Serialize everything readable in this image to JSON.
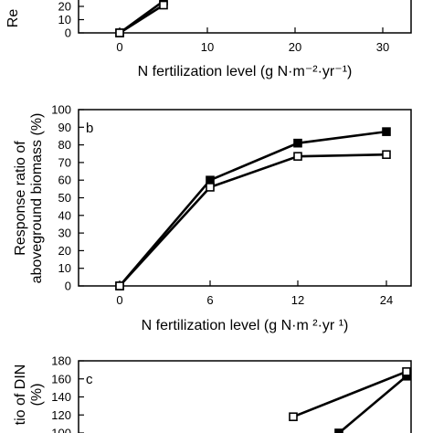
{
  "chart_data": [
    {
      "type": "line",
      "panel": "a",
      "x": [
        0,
        5
      ],
      "series": [
        {
          "marker": "filled-square",
          "values": [
            0,
            24
          ]
        },
        {
          "marker": "open-square",
          "values": [
            0,
            21
          ]
        }
      ],
      "x_axis": {
        "ticks": [
          0,
          10,
          20,
          30
        ],
        "tick_labels": [
          "0",
          "10",
          "20",
          "30"
        ]
      },
      "y_axis": {
        "ticks": [
          0,
          10,
          20
        ],
        "tick_labels": [
          "0",
          "10",
          "20"
        ]
      },
      "xlabel": "N fertilization level (g N·m⁻²·yr⁻¹)",
      "ylabel_fragment": "Re"
    },
    {
      "type": "line",
      "panel": "b",
      "categories": [
        "0",
        "6",
        "12",
        "24"
      ],
      "series": [
        {
          "marker": "filled-square",
          "values": [
            0,
            60,
            81,
            87.5
          ]
        },
        {
          "marker": "open-square",
          "values": [
            0,
            56,
            73.5,
            74.5
          ]
        }
      ],
      "y_axis": {
        "ylim": [
          0,
          100
        ],
        "ticks": [
          0,
          10,
          20,
          30,
          40,
          50,
          60,
          70,
          80,
          90,
          100
        ],
        "tick_labels": [
          "0",
          "10",
          "20",
          "30",
          "40",
          "50",
          "60",
          "70",
          "80",
          "90",
          "100"
        ]
      },
      "xlabel": "N fertilization level (g N·m ²·yr ¹)",
      "ylabel_line1": "Response ratio of",
      "ylabel_line2": "aboveground biomass (%)"
    },
    {
      "type": "line",
      "panel": "c",
      "series": [
        {
          "marker": "filled-square",
          "points": [
            [
              375,
              100
            ],
            [
              449,
              163
            ]
          ]
        },
        {
          "marker": "open-square",
          "points": [
            [
              325,
              118
            ],
            [
              449,
              168
            ]
          ]
        }
      ],
      "y_axis": {
        "ticks": [
          100,
          120,
          140,
          160,
          180
        ],
        "tick_labels": [
          "100",
          "120",
          "140",
          "160",
          "180"
        ]
      },
      "ylabel_line1": "tio of DIN",
      "ylabel_line2": "(%)"
    }
  ]
}
